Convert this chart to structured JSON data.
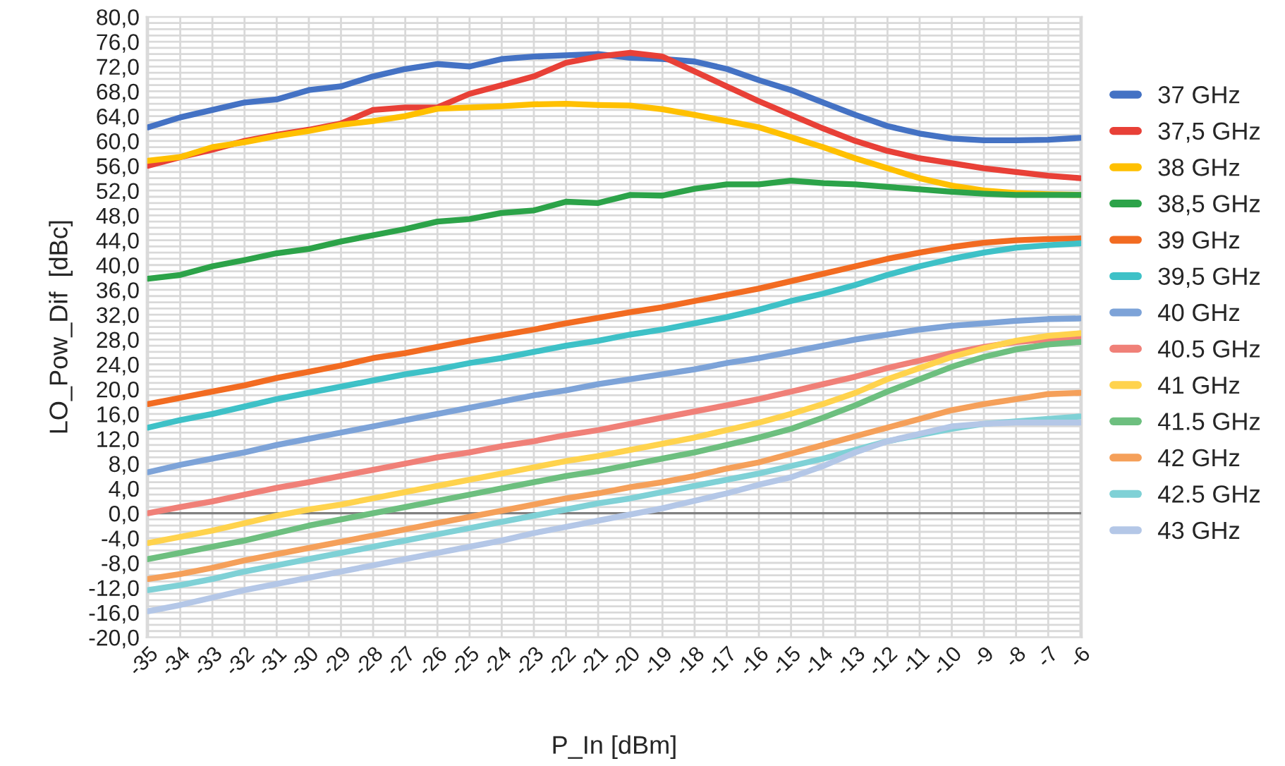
{
  "chart_data": {
    "type": "line",
    "xlabel": "P_In [dBm]",
    "ylabel": "LO_Pow_Dif  [dBc]",
    "categories": [
      "-35",
      "-34",
      "-33",
      "-32",
      "-31",
      "-30",
      "-29",
      "-28",
      "-27",
      "-26",
      "-25",
      "-24",
      "-23",
      "-22",
      "-21",
      "-20",
      "-19",
      "-18",
      "-17",
      "-16",
      "-15",
      "-14",
      "-13",
      "-12",
      "-11",
      "-10",
      "-9",
      "-8",
      "-7",
      "-6"
    ],
    "ylim": [
      -20,
      80
    ],
    "yticks": [
      {
        "value": -20,
        "label": "-20,0"
      },
      {
        "value": -16,
        "label": "-16,0"
      },
      {
        "value": -12,
        "label": "-12,0"
      },
      {
        "value": -8,
        "label": "-8,0"
      },
      {
        "value": -4,
        "label": "-4,0"
      },
      {
        "value": 0,
        "label": "0,0"
      },
      {
        "value": 4,
        "label": "4,0"
      },
      {
        "value": 8,
        "label": "8,0"
      },
      {
        "value": 12,
        "label": "12,0"
      },
      {
        "value": 16,
        "label": "16,0"
      },
      {
        "value": 20,
        "label": "20,0"
      },
      {
        "value": 24,
        "label": "24,0"
      },
      {
        "value": 28,
        "label": "28,0"
      },
      {
        "value": 32,
        "label": "32,0"
      },
      {
        "value": 36,
        "label": "36,0"
      },
      {
        "value": 40,
        "label": "40,0"
      },
      {
        "value": 44,
        "label": "44,0"
      },
      {
        "value": 48,
        "label": "48,0"
      },
      {
        "value": 52,
        "label": "52,0"
      },
      {
        "value": 56,
        "label": "56,0"
      },
      {
        "value": 60,
        "label": "60,0"
      },
      {
        "value": 64,
        "label": "64,0"
      },
      {
        "value": 68,
        "label": "68,0"
      },
      {
        "value": 72,
        "label": "72,0"
      },
      {
        "value": 76,
        "label": "76,0"
      },
      {
        "value": 80,
        "label": "80,0"
      }
    ],
    "grid": true,
    "legend": "right",
    "marker": "none",
    "line_style": "solid",
    "ref_lines": [
      {
        "axis": "y",
        "value": 0,
        "label": null,
        "color": "#808080"
      }
    ],
    "series": [
      {
        "name": "37 GHz",
        "color": "#4472c4",
        "values": [
          62.2,
          63.8,
          65,
          66.2,
          66.7,
          68.2,
          68.8,
          70.4,
          71.6,
          72.4,
          72,
          73.2,
          73.6,
          73.8,
          74,
          73.4,
          73.2,
          72.8,
          71.6,
          69.8,
          68.2,
          66.2,
          64.2,
          62.4,
          61.2,
          60.4,
          60.1,
          60.1,
          60.2,
          60.5
        ]
      },
      {
        "name": "37,5 GHz",
        "color": "#e84037",
        "values": [
          56,
          57.4,
          58.6,
          60,
          61,
          61.8,
          62.8,
          65,
          65.4,
          65.4,
          67.6,
          69,
          70.4,
          72.6,
          73.6,
          74.2,
          73.6,
          71.2,
          68.8,
          66.4,
          64.2,
          62,
          60,
          58.4,
          57.2,
          56.4,
          55.6,
          55,
          54.4,
          54
        ]
      },
      {
        "name": "38 GHz",
        "color": "#ffc000",
        "values": [
          56.8,
          57.4,
          59,
          59.8,
          60.8,
          61.6,
          62.6,
          63.2,
          64,
          65.2,
          65.4,
          65.6,
          65.9,
          66,
          65.8,
          65.7,
          65.1,
          64.2,
          63.2,
          62.2,
          60.6,
          59,
          57.2,
          55.6,
          54,
          52.8,
          52,
          51.6,
          51.4,
          51.3
        ]
      },
      {
        "name": "38,5 GHz",
        "color": "#2ca349",
        "values": [
          37.8,
          38.4,
          39.8,
          40.8,
          41.9,
          42.6,
          43.8,
          44.8,
          45.8,
          47,
          47.4,
          48.4,
          48.8,
          50.2,
          50,
          51.3,
          51.2,
          52.3,
          53,
          53,
          53.6,
          53.2,
          53,
          52.6,
          52.2,
          51.8,
          51.5,
          51.3,
          51.3,
          51.3
        ]
      },
      {
        "name": "39 GHz",
        "color": "#f26b21",
        "values": [
          17.6,
          18.6,
          19.6,
          20.6,
          21.8,
          22.8,
          23.8,
          25,
          25.8,
          26.8,
          27.8,
          28.7,
          29.6,
          30.6,
          31.5,
          32.4,
          33.2,
          34.2,
          35.2,
          36.2,
          37.4,
          38.6,
          39.8,
          41,
          42,
          42.9,
          43.6,
          44,
          44.2,
          44.3
        ]
      },
      {
        "name": "39,5 GHz",
        "color": "#3ec1c7",
        "values": [
          13.8,
          15,
          16,
          17.2,
          18.4,
          19.4,
          20.4,
          21.4,
          22.4,
          23.2,
          24.2,
          25,
          26,
          27,
          27.8,
          28.8,
          29.6,
          30.6,
          31.6,
          32.8,
          34.2,
          35.4,
          36.8,
          38.4,
          39.8,
          41,
          42,
          42.8,
          43.2,
          43.5
        ]
      },
      {
        "name": "40 GHz",
        "color": "#7da3d8",
        "values": [
          6.6,
          7.8,
          8.8,
          9.8,
          11,
          12,
          13,
          14,
          15,
          16,
          17,
          18,
          19,
          19.8,
          20.8,
          21.6,
          22.4,
          23.2,
          24.2,
          25,
          26,
          27,
          28,
          28.8,
          29.6,
          30.2,
          30.6,
          31,
          31.3,
          31.4
        ]
      },
      {
        "name": "40.5 GHz",
        "color": "#f08078",
        "values": [
          0,
          1,
          1.9,
          3,
          4.1,
          5,
          6,
          7,
          8,
          9,
          9.8,
          10.8,
          11.6,
          12.6,
          13.4,
          14.4,
          15.4,
          16.4,
          17.4,
          18.4,
          19.6,
          20.8,
          22,
          23.4,
          24.6,
          25.8,
          26.8,
          27.6,
          28,
          28.2
        ]
      },
      {
        "name": "41 GHz",
        "color": "#ffd34d",
        "values": [
          -4.8,
          -3.8,
          -2.8,
          -1.6,
          -0.4,
          0.6,
          1.4,
          2.4,
          3.4,
          4.4,
          5.4,
          6.4,
          7.4,
          8.4,
          9.2,
          10.2,
          11.2,
          12.2,
          13.4,
          14.6,
          16,
          17.6,
          19.4,
          21.6,
          23.4,
          25.2,
          26.6,
          27.8,
          28.6,
          29
        ]
      },
      {
        "name": "41.5 GHz",
        "color": "#6dbf7f",
        "values": [
          -7.4,
          -6.4,
          -5.4,
          -4.4,
          -3.2,
          -2,
          -1,
          0,
          1,
          2,
          3,
          4,
          5,
          6,
          6.8,
          7.8,
          8.8,
          9.8,
          11,
          12.2,
          13.6,
          15.4,
          17.4,
          19.6,
          21.6,
          23.6,
          25.2,
          26.4,
          27.2,
          27.6
        ]
      },
      {
        "name": "42 GHz",
        "color": "#f5a05a",
        "values": [
          -10.6,
          -9.8,
          -8.8,
          -7.6,
          -6.6,
          -5.6,
          -4.6,
          -3.6,
          -2.6,
          -1.6,
          -0.6,
          0.4,
          1.4,
          2.4,
          3.2,
          4.2,
          5,
          6,
          7.2,
          8.2,
          9.6,
          11,
          12.4,
          13.8,
          15.2,
          16.6,
          17.6,
          18.4,
          19.2,
          19.4
        ]
      },
      {
        "name": "42.5 GHz",
        "color": "#7fd1d6",
        "values": [
          -12.4,
          -11.6,
          -10.6,
          -9.4,
          -8.4,
          -7.4,
          -6.4,
          -5.4,
          -4.4,
          -3.4,
          -2.4,
          -1.4,
          -0.4,
          0.6,
          1.6,
          2.4,
          3.4,
          4.4,
          5.4,
          6.4,
          7.6,
          8.8,
          10.2,
          11.6,
          12.6,
          13.6,
          14.4,
          14.8,
          15.2,
          15.6
        ]
      },
      {
        "name": "43 GHz",
        "color": "#b4c7e7",
        "values": [
          -15.8,
          -14.8,
          -13.6,
          -12.4,
          -11.4,
          -10.4,
          -9.4,
          -8.4,
          -7.4,
          -6.4,
          -5.4,
          -4.4,
          -3.2,
          -2.2,
          -1.2,
          -0.2,
          0.8,
          2,
          3.2,
          4.6,
          5.8,
          7.6,
          9.8,
          11.6,
          12.8,
          14,
          14.4,
          14.6,
          14.6,
          14.6
        ]
      }
    ]
  }
}
